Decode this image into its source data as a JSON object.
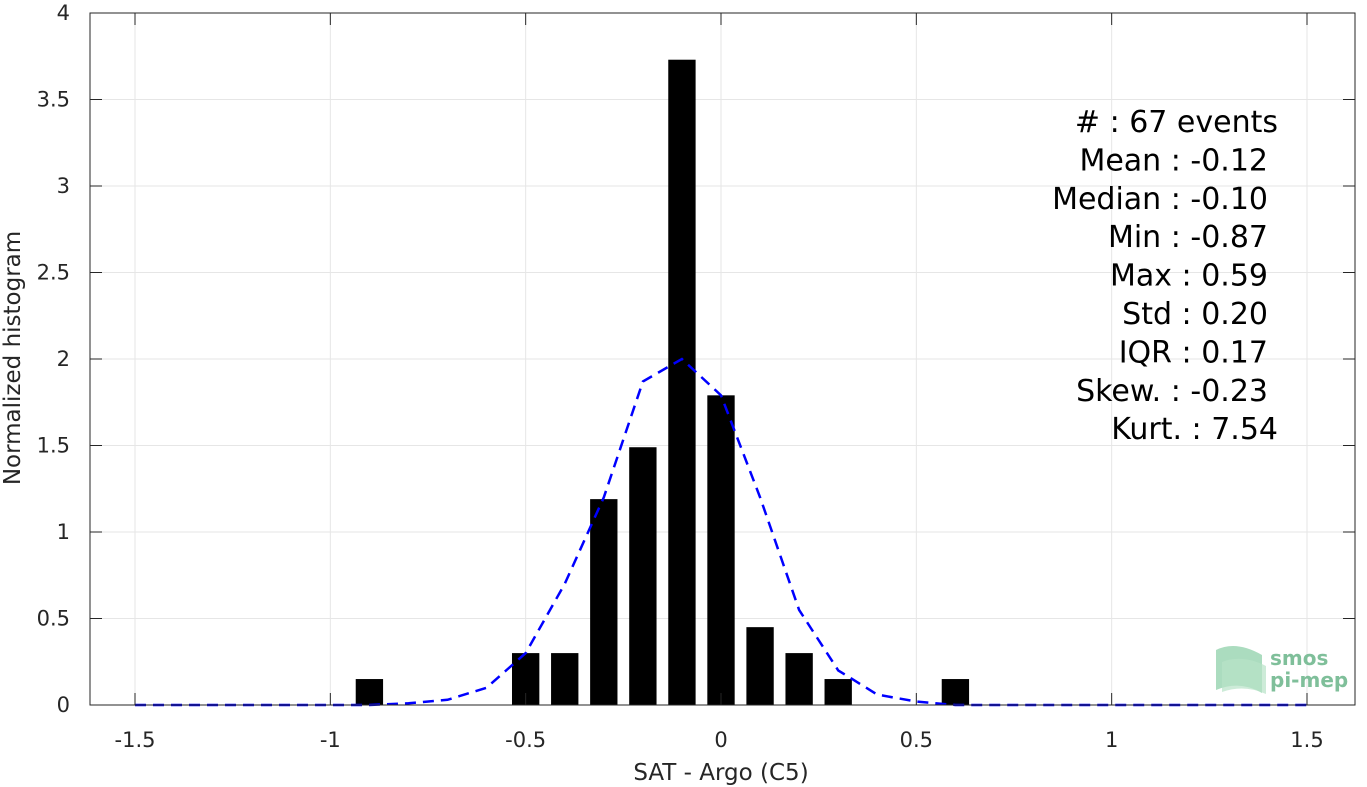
{
  "chart_data": {
    "type": "bar",
    "xlabel": "SAT - Argo (C5)",
    "ylabel": "Normalized histogram",
    "xlim": [
      -1.5,
      1.5
    ],
    "ylim": [
      0,
      4
    ],
    "xticks": [
      -1.5,
      -1,
      -0.5,
      0,
      0.5,
      1,
      1.5
    ],
    "xtick_labels": [
      "-1.5",
      "-1",
      "-0.5",
      "0",
      "0.5",
      "1",
      "1.5"
    ],
    "yticks": [
      0,
      0.5,
      1,
      1.5,
      2,
      2.5,
      3,
      3.5,
      4
    ],
    "ytick_labels": [
      "0",
      "0.5",
      "1",
      "1.5",
      "2",
      "2.5",
      "3",
      "3.5",
      "4"
    ],
    "grid": true,
    "bar_width": 0.07,
    "bars": {
      "x": [
        -0.9,
        -0.5,
        -0.4,
        -0.3,
        -0.2,
        -0.1,
        0.0,
        0.1,
        0.2,
        0.3,
        0.6
      ],
      "values": [
        0.15,
        0.3,
        0.3,
        1.19,
        1.49,
        3.73,
        1.79,
        0.45,
        0.3,
        0.15,
        0.15
      ],
      "color": "#000000"
    },
    "fit_curve": {
      "style": "dashed",
      "color": "#0000ff",
      "x": [
        -1.5,
        -1.4,
        -1.3,
        -1.2,
        -1.1,
        -1.0,
        -0.9,
        -0.8,
        -0.7,
        -0.6,
        -0.5,
        -0.4,
        -0.3,
        -0.2,
        -0.1,
        0.0,
        0.1,
        0.2,
        0.3,
        0.4,
        0.5,
        0.6,
        0.7,
        0.8,
        0.9,
        1.0,
        1.1,
        1.2,
        1.3,
        1.4,
        1.5
      ],
      "y": [
        0,
        0,
        0,
        0,
        0,
        0,
        0,
        0.01,
        0.03,
        0.1,
        0.3,
        0.7,
        1.2,
        1.87,
        2.0,
        1.79,
        1.2,
        0.55,
        0.2,
        0.06,
        0.02,
        0,
        0,
        0,
        0,
        0,
        0,
        0,
        0,
        0,
        0
      ]
    },
    "stats_box": {
      "placement": "top-right",
      "lines": [
        "#  : 67 events",
        "Mean : -0.12",
        "Median : -0.10",
        "Min : -0.87",
        "Max : 0.59",
        "Std : 0.20",
        "IQR : 0.17",
        "Skew. : -0.23",
        "Kurt. : 7.54"
      ]
    },
    "logo": {
      "line1": "smos",
      "line2": "pi-mep",
      "color": "#7fbf9a"
    }
  }
}
